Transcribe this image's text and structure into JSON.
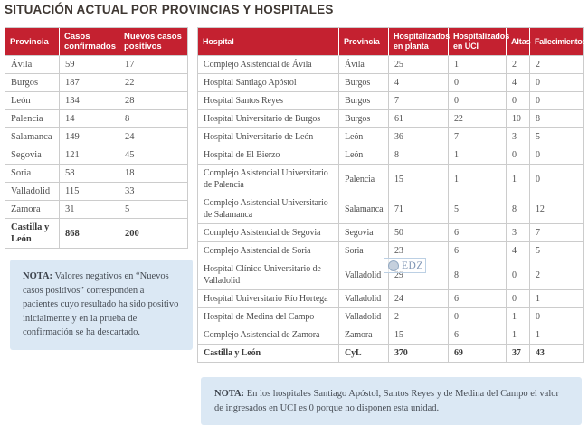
{
  "title": "SITUACIÓN ACTUAL POR PROVINCIAS Y HOSPITALES",
  "colors": {
    "header_red": "#c42130",
    "note_bg": "#dbe8f4"
  },
  "provinces_table": {
    "headers": [
      "Provincia",
      "Casos confirmados",
      "Nuevos casos positivos"
    ],
    "rows": [
      [
        "Ávila",
        "59",
        "17"
      ],
      [
        "Burgos",
        "187",
        "22"
      ],
      [
        "León",
        "134",
        "28"
      ],
      [
        "Palencia",
        "14",
        "8"
      ],
      [
        "Salamanca",
        "149",
        "24"
      ],
      [
        "Segovia",
        "121",
        "45"
      ],
      [
        "Soria",
        "58",
        "18"
      ],
      [
        "Valladolid",
        "115",
        "33"
      ],
      [
        "Zamora",
        "31",
        "5"
      ]
    ],
    "total_row": [
      "Castilla y León",
      "868",
      "200"
    ]
  },
  "provinces_note": {
    "label": "NOTA:",
    "text": "Valores negativos en “Nuevos casos positivos” corresponden a pacientes cuyo resultado ha sido positivo inicialmente y en la prueba de confirmación se ha descartado."
  },
  "hospitals_table": {
    "headers": [
      "Hospital",
      "Provincia",
      "Hospitalizados en planta",
      "Hospitalizados en UCI",
      "Altas",
      "Fallecimientos"
    ],
    "rows": [
      [
        "Complejo Asistencial de Ávila",
        "Ávila",
        "25",
        "1",
        "2",
        "2"
      ],
      [
        "Hospital Santiago Apóstol",
        "Burgos",
        "4",
        "0",
        "4",
        "0"
      ],
      [
        "Hospital Santos Reyes",
        "Burgos",
        "7",
        "0",
        "0",
        "0"
      ],
      [
        "Hospital Universitario de Burgos",
        "Burgos",
        "61",
        "22",
        "10",
        "8"
      ],
      [
        "Hospital Universitario de León",
        "León",
        "36",
        "7",
        "3",
        "5"
      ],
      [
        "Hospital de El Bierzo",
        "León",
        "8",
        "1",
        "0",
        "0"
      ],
      [
        "Complejo Asistencial Universitario de Palencia",
        "Palencia",
        "15",
        "1",
        "1",
        "0"
      ],
      [
        "Complejo Asistencial Universitario de Salamanca",
        "Salamanca",
        "71",
        "5",
        "8",
        "12"
      ],
      [
        "Complejo Asistencial de Segovia",
        "Segovia",
        "50",
        "6",
        "3",
        "7"
      ],
      [
        "Complejo Asistencial de Soria",
        "Soria",
        "23",
        "6",
        "4",
        "5"
      ],
      [
        "Hospital Clínico Universitario de Valladolid",
        "Valladolid",
        "29",
        "8",
        "0",
        "2"
      ],
      [
        "Hospital Universitario Río Hortega",
        "Valladolid",
        "24",
        "6",
        "0",
        "1"
      ],
      [
        "Hospital de Medina del Campo",
        "Valladolid",
        "2",
        "0",
        "1",
        "0"
      ],
      [
        "Complejo Asistencial de Zamora",
        "Zamora",
        "15",
        "6",
        "1",
        "1"
      ]
    ],
    "total_row": [
      "Castilla y León",
      "CyL",
      "370",
      "69",
      "37",
      "43"
    ]
  },
  "hospitals_note": {
    "label": "NOTA:",
    "text": "En los hospitales Santiago Apóstol, Santos Reyes y de Medina del Campo el valor de ingresados en UCI es 0 porque no disponen esta unidad."
  },
  "watermark": {
    "text": "EDZ"
  }
}
